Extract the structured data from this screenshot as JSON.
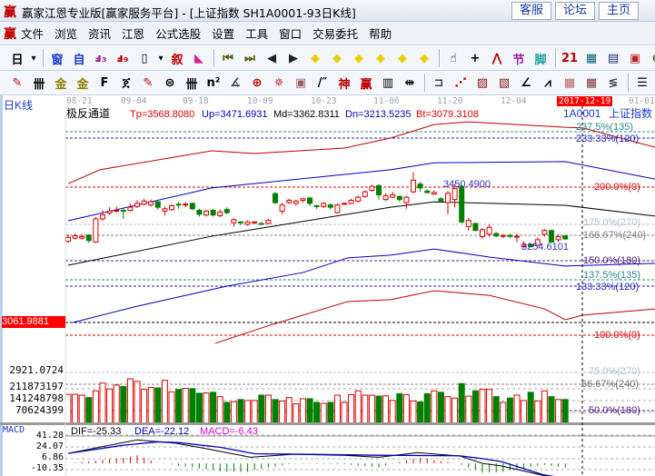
{
  "window": {
    "title": "赢家江恩专业版[赢家服务平台] - [上证指数  SH1A0001-93日K线]",
    "logo_glyph": "赢",
    "buttons": [
      "客服",
      "论坛",
      "主页"
    ]
  },
  "menu": {
    "logo_glyph": "赢",
    "items": [
      "文件",
      "浏览",
      "资讯",
      "江恩",
      "公式选股",
      "设置",
      "工具",
      "窗口",
      "交易委托",
      "帮助"
    ]
  },
  "toolbar1": [
    {
      "icon": "daily-period-icon",
      "glyph": "日",
      "color": "#000"
    },
    {
      "icon": "dropdown-arrow-icon",
      "glyph": "▾",
      "color": "#000"
    },
    {
      "icon": "window-layout-icon",
      "glyph": "窗",
      "color": "#1a3ad0"
    },
    {
      "icon": "self-select-icon",
      "glyph": "自",
      "color": "#1a3ad0"
    },
    {
      "icon": "indicator-3-icon",
      "glyph": "ⅎ₃",
      "color": "#a020a0"
    },
    {
      "icon": "indicator-9-icon",
      "glyph": "ⅎ₉",
      "color": "#c00000"
    },
    {
      "icon": "candle-type-icon",
      "glyph": "▯",
      "color": "#000"
    },
    {
      "icon": "dropdown-arrow-icon",
      "glyph": "▾",
      "color": "#000"
    },
    {
      "icon": "narrative-icon",
      "glyph": "叙",
      "color": "#c00000"
    },
    {
      "icon": "flag-icon",
      "glyph": "◣",
      "color": "#e0208a"
    },
    {
      "icon": "first-icon",
      "glyph": "⏮",
      "color": "#606010"
    },
    {
      "icon": "last-icon",
      "glyph": "⏭",
      "color": "#606010"
    },
    {
      "icon": "prev-icon",
      "glyph": "◀",
      "color": "#202020"
    },
    {
      "icon": "next-icon",
      "glyph": "▶",
      "color": "#202020"
    },
    {
      "icon": "move-left-icon",
      "glyph": "◆",
      "color": "#e8d000"
    },
    {
      "icon": "move-right-icon",
      "glyph": "◆",
      "color": "#e8d000"
    },
    {
      "icon": "expand-h-icon",
      "glyph": "◆",
      "color": "#e8d000"
    },
    {
      "icon": "shrink-h-icon",
      "glyph": "◆",
      "color": "#e8d000"
    },
    {
      "icon": "zoom-in-icon",
      "glyph": "◆",
      "color": "#e8d000"
    },
    {
      "icon": "zoom-out-icon",
      "glyph": "◆",
      "color": "#e8d000"
    },
    {
      "icon": "hand-icon",
      "glyph": "☝",
      "color": "#000"
    },
    {
      "icon": "crosshair-icon",
      "glyph": "+",
      "color": "#000"
    },
    {
      "icon": "line-tool-icon",
      "glyph": "⋀",
      "color": "#c00000"
    },
    {
      "icon": "section-icon",
      "glyph": "节",
      "color": "#a020a0"
    },
    {
      "icon": "foot-icon",
      "glyph": "脚",
      "color": "#20a0a0"
    },
    {
      "icon": "calendar-icon",
      "glyph": "21",
      "color": "#c00000"
    },
    {
      "icon": "calculator-icon",
      "glyph": "▦",
      "color": "#0a6070"
    },
    {
      "icon": "document-icon",
      "glyph": "▤",
      "color": "#203070"
    },
    {
      "icon": "save-icon",
      "glyph": "▣",
      "color": "#c02020"
    },
    {
      "icon": "network-icon",
      "glyph": "⊕",
      "color": "#206020"
    },
    {
      "icon": "printer-icon",
      "glyph": "▩",
      "color": "#303050"
    }
  ],
  "toolbar2": [
    {
      "icon": "pen-icon",
      "glyph": "✎",
      "color": "#c00000"
    },
    {
      "icon": "vertical-lines-icon",
      "glyph": "卌",
      "color": "#000"
    },
    {
      "icon": "gold-line-icon",
      "glyph": "金",
      "color": "#908000"
    },
    {
      "icon": "gold-line-2-icon",
      "glyph": "金",
      "color": "#908000"
    },
    {
      "icon": "f-line-icon",
      "glyph": "F",
      "color": "#000"
    },
    {
      "icon": "spiral-icon",
      "glyph": "ጀ",
      "color": "#000"
    },
    {
      "icon": "pen-scale-icon",
      "glyph": "✎",
      "color": "#c00000"
    },
    {
      "icon": "circle-scale-icon",
      "glyph": "⊜",
      "color": "#000"
    },
    {
      "icon": "equal-lines-icon",
      "glyph": "卌",
      "color": "#000"
    },
    {
      "icon": "n-squared-icon",
      "glyph": "n²",
      "color": "#000"
    },
    {
      "icon": "angle-icon",
      "glyph": "∡",
      "color": "#404040"
    },
    {
      "icon": "target-icon",
      "glyph": "⊕",
      "color": "#c00000"
    },
    {
      "icon": "star-target-icon",
      "glyph": "✵",
      "color": "#c04040"
    },
    {
      "icon": "square-target-icon",
      "glyph": "▣",
      "color": "#a06060"
    },
    {
      "icon": "ratio-lines-icon",
      "glyph": "/″",
      "color": "#000"
    },
    {
      "icon": "god-icon",
      "glyph": "神",
      "color": "#c00000"
    },
    {
      "icon": "win-icon",
      "glyph": "赢",
      "color": "#c00000"
    },
    {
      "icon": "ruler-123-icon",
      "glyph": "▥",
      "color": "#000"
    },
    {
      "icon": "width-measure-icon",
      "glyph": "⇹",
      "color": "#000"
    },
    {
      "icon": "box-icon",
      "glyph": "⊐",
      "color": "#404040"
    },
    {
      "icon": "fan-icon",
      "glyph": "⋰",
      "color": "#c00000"
    },
    {
      "icon": "gann-square-icon",
      "glyph": "▨",
      "color": "#8a1010"
    },
    {
      "icon": "gann-fan-icon",
      "glyph": "▧",
      "color": "#8a1010"
    },
    {
      "icon": "angle-lines-icon",
      "glyph": "∠",
      "color": "#000"
    },
    {
      "icon": "wave-icon",
      "glyph": "⩘",
      "color": "#000"
    },
    {
      "icon": "grid-icon",
      "glyph": "▦",
      "color": "#c06060"
    },
    {
      "icon": "grid-2-icon",
      "glyph": "▦",
      "color": "#803040"
    },
    {
      "icon": "parallel-icon",
      "glyph": "≶",
      "color": "#404040"
    },
    {
      "icon": "table-icon",
      "glyph": "☰",
      "color": "#000"
    },
    {
      "icon": "percent-icon",
      "glyph": "%",
      "color": "#c00000"
    }
  ],
  "dates": [
    "08-21",
    "09-04",
    "09-18",
    "10-09",
    "10-23",
    "11-06",
    "11-20",
    "12-04",
    "2017-12-19",
    "01-01"
  ],
  "period_label": "日K线",
  "indicator": {
    "name": "极反通道",
    "tp": "Tp=3568.8080",
    "up": "Up=3471.6931",
    "md": "Md=3362.8311",
    "dn": "Dn=3213.5235",
    "bt": "Bt=3079.3108"
  },
  "symbol": {
    "code": "1A0001",
    "name": "上证指数"
  },
  "cursor_price": "3061.9881",
  "bottom_price": "2921.0724",
  "high_label": "3450.4900",
  "low_label": "3254.6101",
  "levels": [
    "237.5%(135)",
    "233.33%(120)",
    "200.0%(0)",
    "175.0%(270)",
    "166.67%(240)",
    "150.0%(180)",
    "137.5%(135)",
    "133.33%(120)",
    "100.0%(0)"
  ],
  "volume_levels": [
    "75.0%(270)",
    "66.67%(240)",
    "50.0%(180)"
  ],
  "volume_axis": [
    "211873197",
    "141248798",
    "70624399"
  ],
  "macd": {
    "title": "MACD",
    "dif": "DIF=-25.33",
    "dea": "DEA=-22.12",
    "macd": "MACD=-6.43",
    "axis": [
      "41.28",
      "24.07",
      "6.86",
      "-10.35"
    ]
  },
  "colors": {
    "up": "#e00000",
    "down": "#008000",
    "mid": "#000000",
    "band_blue": "#0000c0",
    "band_red": "#c00000"
  },
  "chart_data": {
    "type": "candlestick",
    "candles_ohlc": [
      [
        3272,
        3290,
        3268,
        3282
      ],
      [
        3280,
        3292,
        3276,
        3286
      ],
      [
        3280,
        3290,
        3276,
        3284
      ],
      [
        3288,
        3290,
        3268,
        3274
      ],
      [
        3270,
        3335,
        3268,
        3330
      ],
      [
        3330,
        3352,
        3325,
        3340
      ],
      [
        3345,
        3360,
        3340,
        3350
      ],
      [
        3350,
        3362,
        3346,
        3352
      ],
      [
        3352,
        3358,
        3330,
        3350
      ],
      [
        3352,
        3370,
        3348,
        3360
      ],
      [
        3362,
        3378,
        3358,
        3370
      ],
      [
        3368,
        3382,
        3364,
        3376
      ],
      [
        3366,
        3380,
        3362,
        3374
      ],
      [
        3374,
        3376,
        3354,
        3360
      ],
      [
        3350,
        3362,
        3338,
        3356
      ],
      [
        3354,
        3368,
        3350,
        3364
      ],
      [
        3368,
        3374,
        3356,
        3366
      ],
      [
        3366,
        3374,
        3360,
        3368
      ],
      [
        3370,
        3372,
        3352,
        3356
      ],
      [
        3352,
        3356,
        3336,
        3342
      ],
      [
        3340,
        3354,
        3336,
        3350
      ],
      [
        3352,
        3356,
        3336,
        3340
      ],
      [
        3338,
        3354,
        3334,
        3348
      ],
      [
        3354,
        3360,
        3342,
        3346
      ],
      [
        3320,
        3332,
        3310,
        3328
      ],
      [
        3322,
        3324,
        3314,
        3320
      ],
      [
        3316,
        3326,
        3312,
        3322
      ],
      [
        3320,
        3324,
        3316,
        3322
      ],
      [
        3318,
        3322,
        3314,
        3316
      ],
      [
        3318,
        3330,
        3316,
        3326
      ],
      [
        3395,
        3400,
        3368,
        3372
      ],
      [
        3350,
        3372,
        3342,
        3366
      ],
      [
        3372,
        3382,
        3368,
        3378
      ],
      [
        3370,
        3380,
        3364,
        3376
      ],
      [
        3378,
        3384,
        3372,
        3382
      ],
      [
        3384,
        3386,
        3364,
        3370
      ],
      [
        3364,
        3366,
        3356,
        3362
      ],
      [
        3362,
        3374,
        3358,
        3370
      ],
      [
        3366,
        3370,
        3354,
        3360
      ],
      [
        3346,
        3370,
        3344,
        3366
      ],
      [
        3368,
        3372,
        3366,
        3370
      ],
      [
        3370,
        3382,
        3368,
        3378
      ],
      [
        3376,
        3390,
        3372,
        3386
      ],
      [
        3388,
        3404,
        3384,
        3400
      ],
      [
        3404,
        3418,
        3400,
        3414
      ],
      [
        3416,
        3420,
        3380,
        3392
      ],
      [
        3380,
        3396,
        3376,
        3390
      ],
      [
        3386,
        3400,
        3384,
        3392
      ],
      [
        3388,
        3390,
        3374,
        3380
      ],
      [
        3372,
        3390,
        3356,
        3386
      ],
      [
        3400,
        3450.49,
        3396,
        3430
      ],
      [
        3420,
        3426,
        3400,
        3410
      ],
      [
        3402,
        3406,
        3396,
        3398
      ],
      [
        3394,
        3404,
        3392,
        3398
      ],
      [
        3382,
        3386,
        3372,
        3376
      ],
      [
        3372,
        3402,
        3342,
        3396
      ],
      [
        3380,
        3420,
        3360,
        3408
      ],
      [
        3414,
        3418,
        3318,
        3322
      ],
      [
        3310,
        3332,
        3300,
        3326
      ],
      [
        3318,
        3320,
        3298,
        3300
      ],
      [
        3284,
        3306,
        3278,
        3302
      ],
      [
        3290,
        3316,
        3284,
        3308
      ],
      [
        3292,
        3296,
        3282,
        3286
      ],
      [
        3285,
        3290,
        3280,
        3287
      ],
      [
        3287,
        3292,
        3280,
        3285
      ],
      [
        3283,
        3292,
        3270,
        3285
      ],
      [
        3258,
        3272,
        3254.61,
        3262
      ],
      [
        3264,
        3266,
        3256,
        3258
      ],
      [
        3262,
        3282,
        3260,
        3276
      ],
      [
        3290,
        3304,
        3284,
        3300
      ],
      [
        3300,
        3300,
        3268,
        3270
      ],
      [
        3276,
        3290,
        3270,
        3284
      ],
      [
        3286,
        3288,
        3276,
        3278
      ]
    ],
    "volumes": [
      180000000,
      180000000,
      175000000,
      160000000,
      202000000,
      250000000,
      214000000,
      238000000,
      229000000,
      277000000,
      261000000,
      211000000,
      223000000,
      220000000,
      268000000,
      196000000,
      211000000,
      218000000,
      216000000,
      187000000,
      189000000,
      193000000,
      166000000,
      130000000,
      135000000,
      148000000,
      142000000,
      142000000,
      175000000,
      175000000,
      148000000,
      139000000,
      160000000,
      121000000,
      153000000,
      153000000,
      130000000,
      124000000,
      130000000,
      175000000,
      130000000,
      178000000,
      202000000,
      175000000,
      175000000,
      169000000,
      171000000,
      142000000,
      184000000,
      178000000,
      139000000,
      133000000,
      184000000,
      202000000,
      193000000,
      166000000,
      157000000,
      247000000,
      169000000,
      202000000,
      211000000,
      211000000,
      166000000,
      130000000,
      157000000,
      175000000,
      142000000,
      193000000,
      139000000,
      202000000,
      166000000,
      148000000,
      148000000
    ],
    "bands": {
      "upper_red": [
        [
          0,
          3421
        ],
        [
          4.6,
          3457
        ],
        [
          20.8,
          3506
        ],
        [
          27,
          3499
        ],
        [
          40,
          3513
        ],
        [
          46.7,
          3539
        ],
        [
          53,
          3574
        ],
        [
          58,
          3581
        ],
        [
          72,
          3567
        ],
        [
          74.6,
          3565
        ],
        [
          85,
          3515
        ]
      ],
      "upper_blue": [
        [
          0,
          3325
        ],
        [
          20.8,
          3410
        ],
        [
          46.7,
          3457
        ],
        [
          53,
          3475
        ],
        [
          72,
          3478
        ],
        [
          85,
          3433
        ]
      ],
      "middle": [
        [
          0,
          3210
        ],
        [
          20.8,
          3285
        ],
        [
          46.7,
          3360
        ],
        [
          53,
          3374
        ],
        [
          72,
          3365
        ],
        [
          85,
          3337
        ]
      ],
      "lower_blue": [
        [
          0.7,
          3062
        ],
        [
          10,
          3104
        ],
        [
          23,
          3156
        ],
        [
          34,
          3191
        ],
        [
          40.5,
          3229
        ],
        [
          46.7,
          3236
        ],
        [
          53,
          3252
        ],
        [
          61,
          3231
        ],
        [
          72,
          3208
        ],
        [
          85,
          3215
        ]
      ],
      "lower_red": [
        [
          21.3,
          3008
        ],
        [
          29.6,
          3057
        ],
        [
          40.5,
          3116
        ],
        [
          46.7,
          3121
        ],
        [
          53,
          3144
        ],
        [
          61,
          3132
        ],
        [
          69,
          3097
        ],
        [
          72,
          3069
        ],
        [
          74.6,
          3081
        ],
        [
          85,
          3097
        ]
      ]
    },
    "macd_dif": [
      [
        0,
        14.8
      ],
      [
        5,
        25
      ],
      [
        10,
        35
      ],
      [
        15.5,
        30
      ],
      [
        20,
        22
      ],
      [
        26.4,
        9
      ],
      [
        32.5,
        13.5
      ],
      [
        40,
        12
      ],
      [
        45,
        9
      ],
      [
        50.6,
        16
      ],
      [
        53,
        14
      ],
      [
        56.7,
        11
      ],
      [
        60,
        0
      ],
      [
        62.8,
        -4
      ],
      [
        68.8,
        -18
      ],
      [
        72,
        -25.33
      ]
    ],
    "macd_dea": [
      [
        0,
        14.8
      ],
      [
        8,
        27
      ],
      [
        13,
        32
      ],
      [
        16,
        31
      ],
      [
        22,
        24
      ],
      [
        27,
        14.3
      ],
      [
        35,
        13.5
      ],
      [
        45,
        12
      ],
      [
        56.7,
        11.3
      ],
      [
        60,
        7
      ],
      [
        62.8,
        2.5
      ],
      [
        68.8,
        -17
      ],
      [
        72,
        -22.12
      ]
    ]
  }
}
